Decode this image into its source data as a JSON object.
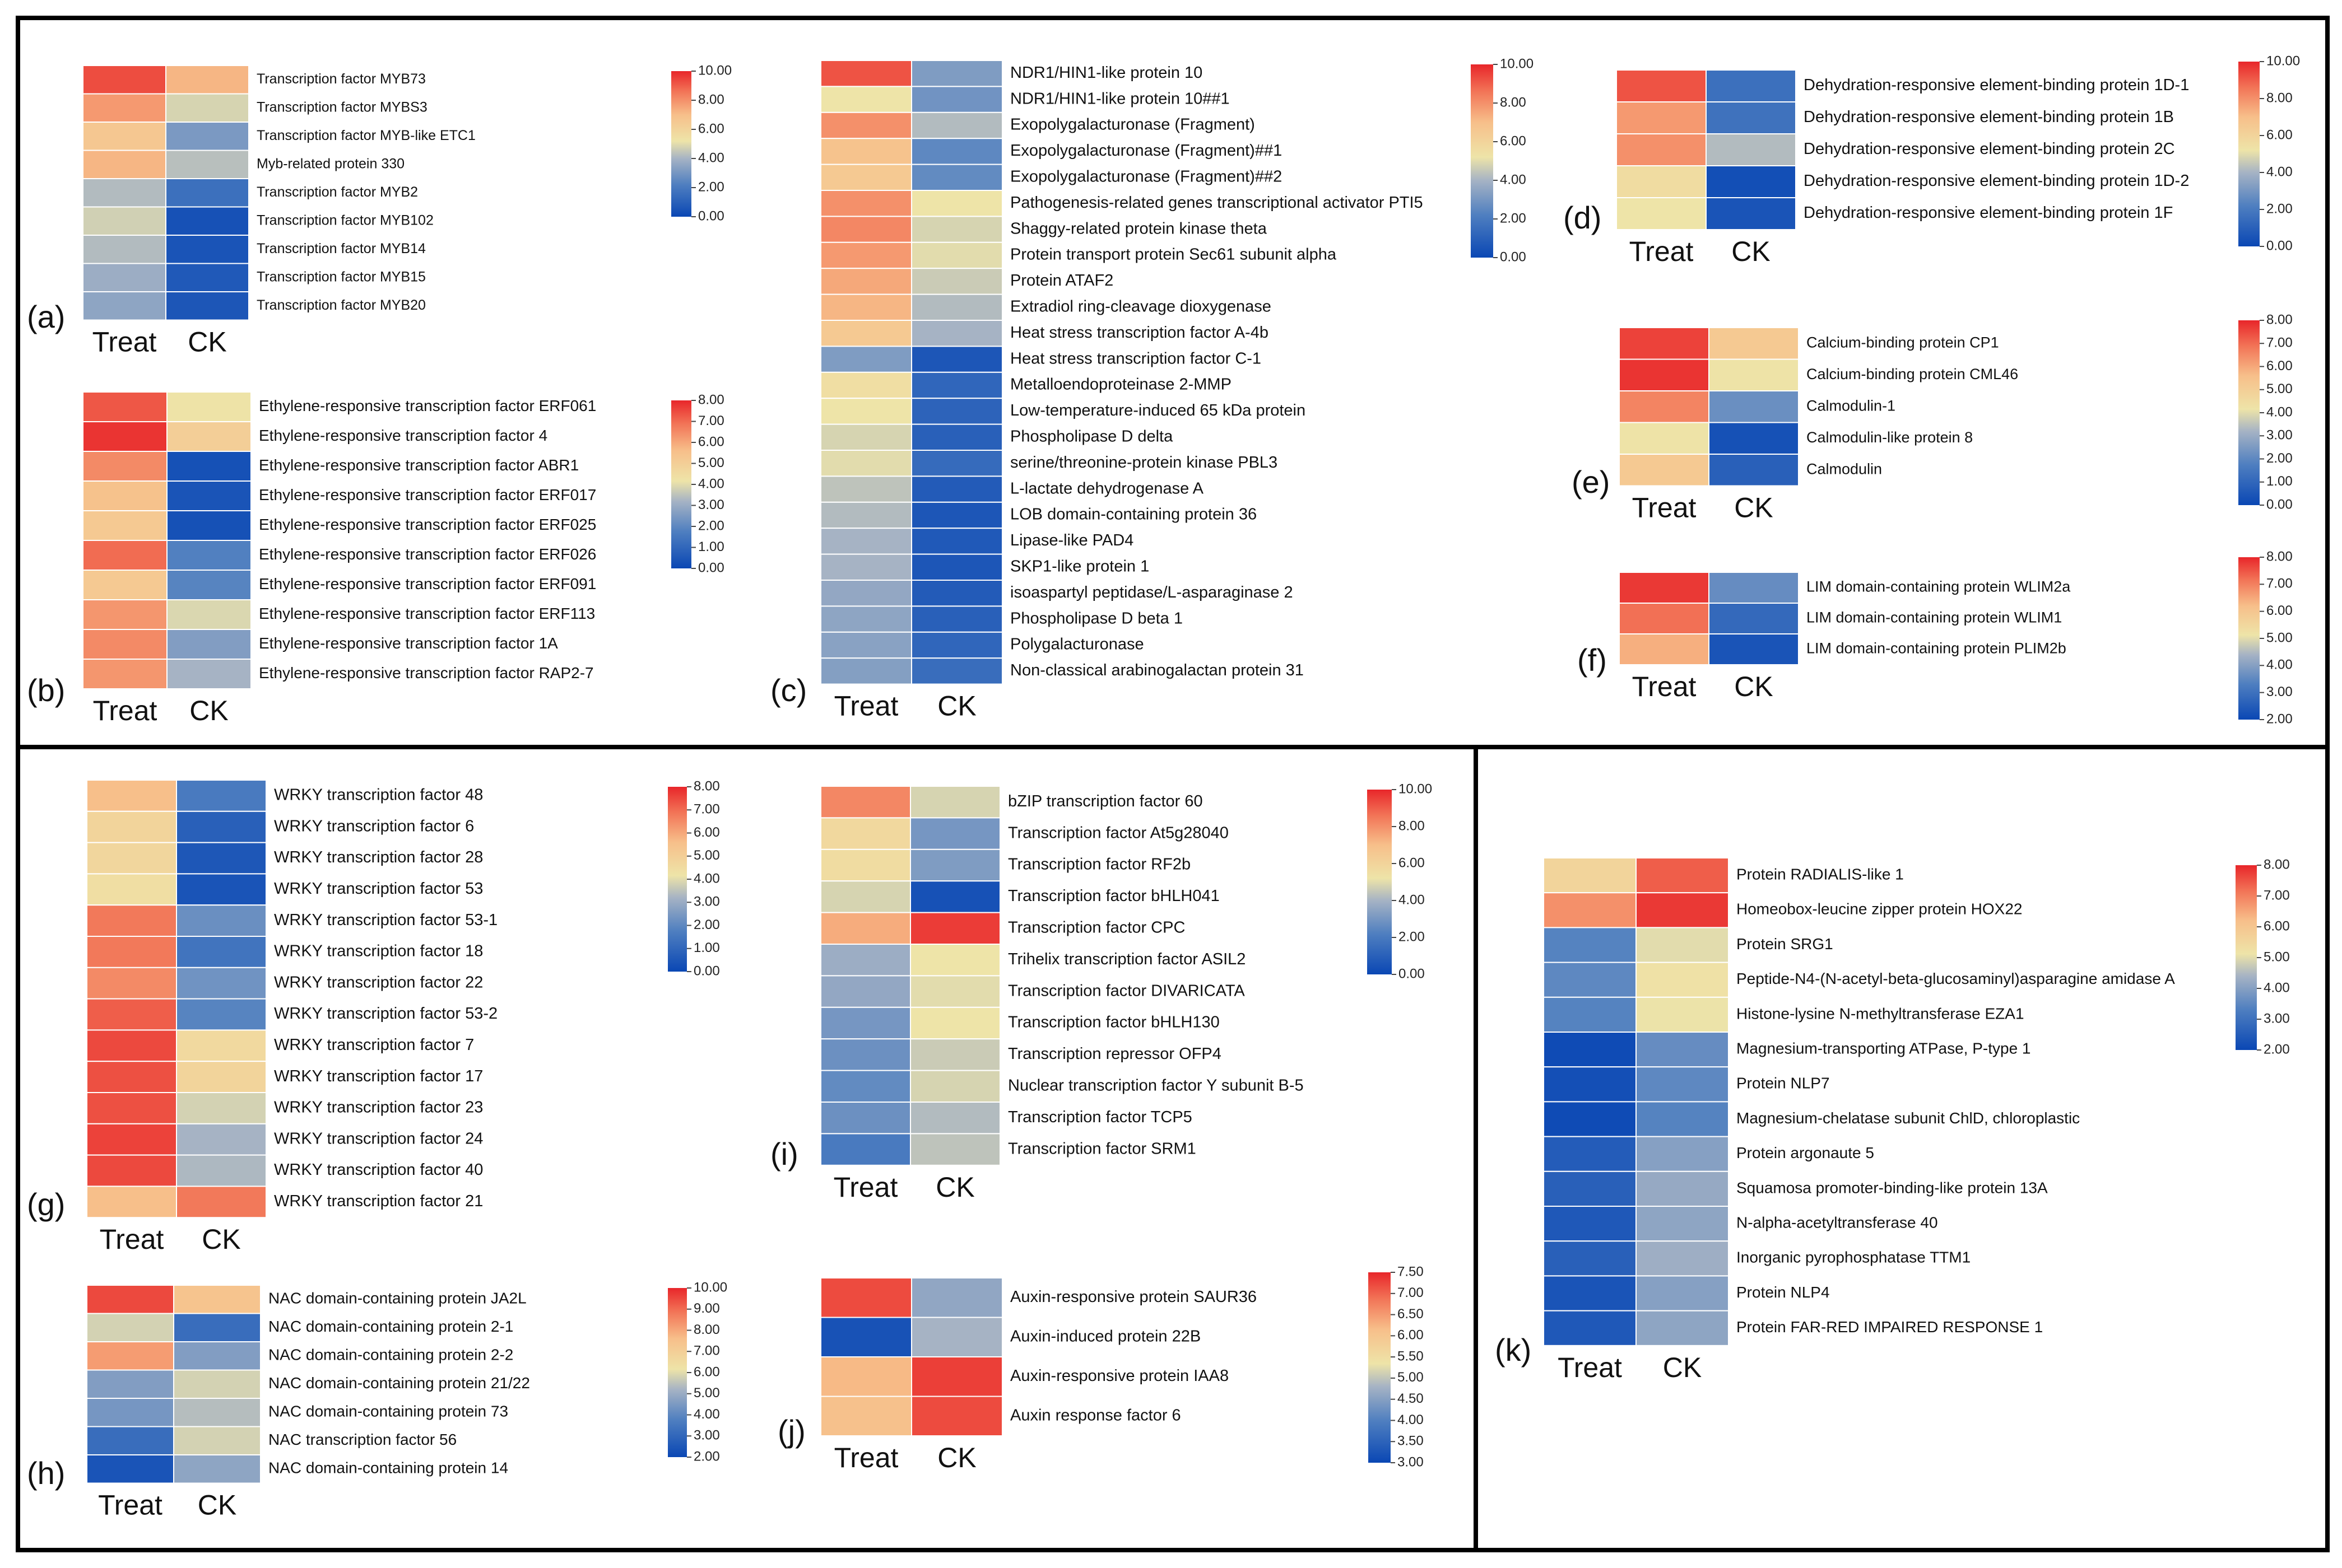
{
  "figure": {
    "colors": {
      "low": "#0a47b4",
      "mid": "#eee4a8",
      "high": "#e8262a",
      "frame": "#000000"
    },
    "colorscale": "blue-yellow-red diverging"
  },
  "chart_data": [
    {
      "type": "heatmap",
      "panel_label": "(a)",
      "columns": [
        "Treat",
        "CK"
      ],
      "rows": [
        "Transcription factor MYB73",
        "Transcription factor MYBS3",
        "Transcription factor MYB-like ETC1",
        "Myb-related protein 330",
        "Transcription factor MYB2",
        "Transcription factor MYB102",
        "Transcription factor MYB14",
        "Transcription factor MYB15",
        "Transcription factor MYB20"
      ],
      "values": [
        [
          9.3,
          7.2
        ],
        [
          7.8,
          4.8
        ],
        [
          6.6,
          3.1
        ],
        [
          7.2,
          4.3
        ],
        [
          4.2,
          1.6
        ],
        [
          4.7,
          0.4
        ],
        [
          4.2,
          0.5
        ],
        [
          3.8,
          0.7
        ],
        [
          3.5,
          0.6
        ]
      ],
      "scale": {
        "min": 0,
        "max": 10,
        "ticks": [
          "10.00",
          "8.00",
          "6.00",
          "4.00",
          "2.00",
          "0.00"
        ]
      }
    },
    {
      "type": "heatmap",
      "panel_label": "(b)",
      "columns": [
        "Treat",
        "CK"
      ],
      "rows": [
        "Ethylene-responsive transcription factor ERF061",
        "Ethylene-responsive transcription factor 4",
        "Ethylene-responsive transcription factor ABR1",
        "Ethylene-responsive transcription factor ERF017",
        "Ethylene-responsive transcription factor ERF025",
        "Ethylene-responsive transcription factor ERF026",
        "Ethylene-responsive transcription factor ERF091",
        "Ethylene-responsive transcription factor ERF113",
        "Ethylene-responsive transcription factor 1A",
        "Ethylene-responsive transcription factor RAP2-7"
      ],
      "values": [
        [
          7.3,
          4.2
        ],
        [
          7.8,
          5.0
        ],
        [
          6.5,
          0.3
        ],
        [
          5.5,
          0.4
        ],
        [
          5.2,
          0.3
        ],
        [
          7.0,
          1.8
        ],
        [
          5.2,
          1.9
        ],
        [
          6.3,
          3.9
        ],
        [
          6.5,
          2.6
        ],
        [
          6.3,
          3.2
        ]
      ],
      "scale": {
        "min": 0,
        "max": 8,
        "ticks": [
          "8.00",
          "7.00",
          "6.00",
          "5.00",
          "4.00",
          "3.00",
          "2.00",
          "1.00",
          "0.00"
        ]
      }
    },
    {
      "type": "heatmap",
      "panel_label": "(c)",
      "columns": [
        "Treat",
        "CK"
      ],
      "rows": [
        "NDR1/HIN1-like protein 10",
        "NDR1/HIN1-like protein 10##1",
        "Exopolygalacturonase (Fragment)",
        "Exopolygalacturonase (Fragment)##1",
        "Exopolygalacturonase (Fragment)##2",
        "Pathogenesis-related genes transcriptional activator PTI5",
        "Shaggy-related protein kinase theta",
        "Protein transport protein Sec61 subunit alpha",
        "Protein ATAF2",
        "Extradiol ring-cleavage dioxygenase",
        "Heat stress transcription factor A-4b",
        "Heat stress transcription factor C-1",
        "Metalloendoproteinase 2-MMP",
        "Low-temperature-induced 65 kDa protein",
        "Phospholipase D delta",
        "serine/threonine-protein kinase PBL3",
        "L-lactate dehydrogenase A",
        "LOB domain-containing protein 36",
        "Lipase-like PAD4",
        "SKP1-like protein 1",
        "isoaspartyl peptidase/L-asparaginase 2",
        "Phospholipase D beta 1",
        "Polygalacturonase",
        "Non-classical arabinogalactan protein 31"
      ],
      "values": [
        [
          9.2,
          3.2
        ],
        [
          5.2,
          2.9
        ],
        [
          8.0,
          4.2
        ],
        [
          6.8,
          2.5
        ],
        [
          6.5,
          2.6
        ],
        [
          8.0,
          5.2
        ],
        [
          8.2,
          4.8
        ],
        [
          7.8,
          5.0
        ],
        [
          7.5,
          4.6
        ],
        [
          7.2,
          4.2
        ],
        [
          6.5,
          4.0
        ],
        [
          3.2,
          0.6
        ],
        [
          5.5,
          1.2
        ],
        [
          5.2,
          1.1
        ],
        [
          4.8,
          1.0
        ],
        [
          5.0,
          1.4
        ],
        [
          4.4,
          0.8
        ],
        [
          4.2,
          0.6
        ],
        [
          4.0,
          0.7
        ],
        [
          4.0,
          0.6
        ],
        [
          3.6,
          0.8
        ],
        [
          3.5,
          1.0
        ],
        [
          3.4,
          1.2
        ],
        [
          3.3,
          1.5
        ]
      ],
      "scale": {
        "min": 0,
        "max": 10,
        "ticks": [
          "10.00",
          "8.00",
          "6.00",
          "4.00",
          "2.00",
          "0.00"
        ]
      }
    },
    {
      "type": "heatmap",
      "panel_label": "(d)",
      "columns": [
        "Treat",
        "CK"
      ],
      "rows": [
        "Dehydration-responsive element-binding protein 1D-1",
        "Dehydration-responsive element-binding protein 1B",
        "Dehydration-responsive element-binding protein 2C",
        "Dehydration-responsive element-binding protein 1D-2",
        "Dehydration-responsive element-binding protein 1F"
      ],
      "values": [
        [
          9.2,
          1.6
        ],
        [
          7.8,
          1.7
        ],
        [
          8.0,
          4.2
        ],
        [
          5.6,
          0.3
        ],
        [
          5.2,
          0.5
        ]
      ],
      "scale": {
        "min": 0,
        "max": 10,
        "ticks": [
          "10.00",
          "8.00",
          "6.00",
          "4.00",
          "2.00",
          "0.00"
        ]
      }
    },
    {
      "type": "heatmap",
      "panel_label": "(e)",
      "columns": [
        "Treat",
        "CK"
      ],
      "rows": [
        "Calcium-binding protein CP1",
        "Calcium-binding protein CML46",
        "Calmodulin-1",
        "Calmodulin-like protein 8",
        "Calmodulin"
      ],
      "values": [
        [
          7.6,
          5.2
        ],
        [
          7.8,
          4.2
        ],
        [
          6.6,
          2.2
        ],
        [
          4.2,
          0.3
        ],
        [
          5.2,
          0.8
        ]
      ],
      "scale": {
        "min": 0,
        "max": 8,
        "ticks": [
          "8.00",
          "7.00",
          "6.00",
          "5.00",
          "4.00",
          "3.00",
          "2.00",
          "1.00",
          "0.00"
        ]
      }
    },
    {
      "type": "heatmap",
      "panel_label": "(f)",
      "columns": [
        "Treat",
        "CK"
      ],
      "rows": [
        "LIM domain-containing protein WLIM2a",
        "LIM domain-containing protein WLIM1",
        "LIM domain-containing protein PLIM2b"
      ],
      "values": [
        [
          7.8,
          3.6
        ],
        [
          7.2,
          2.8
        ],
        [
          6.4,
          2.3
        ]
      ],
      "scale": {
        "min": 2,
        "max": 8,
        "ticks": [
          "8.00",
          "7.00",
          "6.00",
          "5.00",
          "4.00",
          "3.00",
          "2.00"
        ]
      }
    },
    {
      "type": "heatmap",
      "panel_label": "(g)",
      "columns": [
        "Treat",
        "CK"
      ],
      "rows": [
        "WRKY transcription factor 48",
        "WRKY transcription factor 6",
        "WRKY transcription factor 28",
        "WRKY transcription factor 53",
        "WRKY transcription factor 53-1",
        "WRKY transcription factor 18",
        "WRKY transcription factor 22",
        "WRKY transcription factor 53-2",
        "WRKY transcription factor 7",
        "WRKY transcription factor 17",
        "WRKY transcription factor 23",
        "WRKY transcription factor 24",
        "WRKY transcription factor 40",
        "WRKY transcription factor 21"
      ],
      "values": [
        [
          5.6,
          1.6
        ],
        [
          4.8,
          0.8
        ],
        [
          4.7,
          0.5
        ],
        [
          4.4,
          0.4
        ],
        [
          6.8,
          2.2
        ],
        [
          6.8,
          1.4
        ],
        [
          6.5,
          2.3
        ],
        [
          7.2,
          1.9
        ],
        [
          7.5,
          4.6
        ],
        [
          7.4,
          4.8
        ],
        [
          7.4,
          3.8
        ],
        [
          7.6,
          3.2
        ],
        [
          7.5,
          3.3
        ],
        [
          5.6,
          6.8
        ]
      ],
      "scale": {
        "min": 0,
        "max": 8,
        "ticks": [
          "8.00",
          "7.00",
          "6.00",
          "5.00",
          "4.00",
          "3.00",
          "2.00",
          "1.00",
          "0.00"
        ]
      }
    },
    {
      "type": "heatmap",
      "panel_label": "(h)",
      "columns": [
        "Treat",
        "CK"
      ],
      "rows": [
        "NAC domain-containing protein JA2L",
        "NAC domain-containing protein 2-1",
        "NAC domain-containing protein 2-2",
        "NAC domain-containing protein 21/22",
        "NAC domain-containing protein 73",
        "NAC transcription factor 56",
        "NAC domain-containing protein 14"
      ],
      "values": [
        [
          9.5,
          7.4
        ],
        [
          5.8,
          3.2
        ],
        [
          8.2,
          4.6
        ],
        [
          4.6,
          5.8
        ],
        [
          4.4,
          5.4
        ],
        [
          3.2,
          5.8
        ],
        [
          2.4,
          4.8
        ]
      ],
      "scale": {
        "min": 2,
        "max": 10,
        "ticks": [
          "10.00",
          "9.00",
          "8.00",
          "7.00",
          "6.00",
          "5.00",
          "4.00",
          "3.00",
          "2.00"
        ]
      }
    },
    {
      "type": "heatmap",
      "panel_label": "(i)",
      "columns": [
        "Treat",
        "CK"
      ],
      "rows": [
        "bZIP transcription factor 60",
        "Transcription factor At5g28040",
        "Transcription factor RF2b",
        "Transcription factor bHLH041",
        "Transcription factor CPC",
        "Trihelix transcription factor ASIL2",
        "Transcription factor DIVARICATA",
        "Transcription factor bHLH130",
        "Transcription repressor OFP4",
        "Nuclear transcription factor Y subunit B-5",
        "Transcription factor TCP5",
        "Transcription factor SRM1"
      ],
      "values": [
        [
          8.2,
          4.8
        ],
        [
          5.8,
          3.0
        ],
        [
          5.6,
          3.2
        ],
        [
          4.8,
          0.4
        ],
        [
          7.4,
          9.6
        ],
        [
          3.8,
          5.2
        ],
        [
          3.6,
          5.0
        ],
        [
          3.0,
          5.2
        ],
        [
          2.8,
          4.6
        ],
        [
          2.6,
          4.8
        ],
        [
          2.8,
          4.2
        ],
        [
          2.0,
          4.4
        ]
      ],
      "scale": {
        "min": 0,
        "max": 10,
        "ticks": [
          "10.00",
          "8.00",
          "6.00",
          "4.00",
          "2.00",
          "0.00"
        ]
      }
    },
    {
      "type": "heatmap",
      "panel_label": "(j)",
      "columns": [
        "Treat",
        "CK"
      ],
      "rows": [
        "Auxin-responsive protein SAUR36",
        "Auxin-induced protein 22B",
        "Auxin-responsive protein IAA8",
        "Auxin response factor 6"
      ],
      "values": [
        [
          7.2,
          4.6
        ],
        [
          3.2,
          4.8
        ],
        [
          6.2,
          7.3
        ],
        [
          6.1,
          7.2
        ]
      ],
      "scale": {
        "min": 3,
        "max": 7.5,
        "ticks": [
          "7.50",
          "7.00",
          "6.50",
          "6.00",
          "5.50",
          "5.00",
          "4.50",
          "4.00",
          "3.50",
          "3.00"
        ]
      }
    },
    {
      "type": "heatmap",
      "panel_label": "(k)",
      "columns": [
        "Treat",
        "CK"
      ],
      "rows": [
        "Protein RADIALIS-like 1",
        "Homeobox-leucine zipper protein HOX22",
        "Protein SRG1",
        "Peptide-N4-(N-acetyl-beta-glucosaminyl)asparagine amidase A",
        "Histone-lysine N-methyltransferase EZA1",
        "Magnesium-transporting ATPase, P-type 1",
        "Protein NLP7",
        "Magnesium-chelatase subunit ChlD, chloroplastic",
        "Protein argonaute 5",
        "Squamosa promoter-binding-like protein 13A",
        "N-alpha-acetyltransferase 40",
        "Inorganic pyrophosphatase TTM1",
        "Protein NLP4",
        "Protein FAR-RED IMPAIRED RESPONSE 1"
      ],
      "values": [
        [
          5.6,
          7.4
        ],
        [
          6.8,
          7.8
        ],
        [
          3.4,
          5.0
        ],
        [
          3.5,
          5.2
        ],
        [
          3.4,
          5.1
        ],
        [
          2.1,
          3.6
        ],
        [
          2.2,
          3.5
        ],
        [
          2.1,
          3.4
        ],
        [
          2.5,
          4.0
        ],
        [
          2.6,
          4.2
        ],
        [
          2.4,
          4.1
        ],
        [
          2.6,
          4.3
        ],
        [
          2.3,
          4.0
        ],
        [
          2.4,
          4.1
        ]
      ],
      "scale": {
        "min": 2,
        "max": 8,
        "ticks": [
          "8.00",
          "7.00",
          "6.00",
          "5.00",
          "4.00",
          "3.00",
          "2.00"
        ]
      }
    }
  ]
}
